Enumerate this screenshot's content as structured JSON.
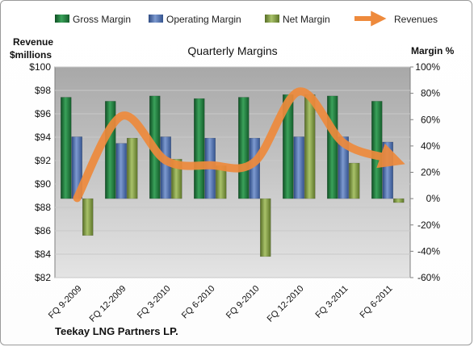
{
  "chart_data": {
    "type": "bar",
    "title": "Quarterly Margins",
    "categories": [
      "FQ 9-2009",
      "FQ 12-2009",
      "FQ 3-2010",
      "FQ 6-2010",
      "FQ 9-2010",
      "FQ 12-2010",
      "FQ 3-2011",
      "FQ 6-2011"
    ],
    "series": [
      {
        "name": "Gross Margin",
        "axis": "right",
        "values": [
          77,
          74,
          78,
          76,
          77,
          79,
          78,
          74
        ]
      },
      {
        "name": "Operating Margin",
        "axis": "right",
        "values": [
          47,
          42,
          47,
          46,
          46,
          47,
          47,
          43
        ]
      },
      {
        "name": "Net Margin",
        "axis": "right",
        "values": [
          -28,
          46,
          30,
          25,
          -44,
          79,
          27,
          -3
        ]
      },
      {
        "name": "Revenues",
        "type": "line",
        "axis": "left",
        "values": [
          88.8,
          95.8,
          92.0,
          91.6,
          91.9,
          97.9,
          93.5,
          92.2
        ]
      }
    ],
    "left_axis": {
      "label_line1": "Revenue",
      "label_line2": "$millions",
      "min": 82,
      "max": 100,
      "step": 2,
      "tick_prefix": "$"
    },
    "right_axis": {
      "label": "Margin %",
      "min": -60,
      "max": 100,
      "step": 20,
      "tick_suffix": "%"
    },
    "legend_position": "top",
    "grid": true,
    "colors": {
      "gross": "#1f7a3d",
      "operating": "#4a6eb0",
      "net": "#7f9a3e",
      "revenue": "#ee8a3c"
    }
  },
  "footer": {
    "company": "Teekay LNG Partners LP."
  }
}
